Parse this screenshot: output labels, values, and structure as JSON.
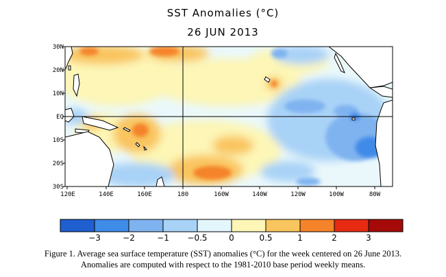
{
  "title": "SST Anomalies (°C)",
  "date": "26 JUN 2013",
  "map": {
    "lat_labels": [
      "30N",
      "20N",
      "10N",
      "EQ",
      "10S",
      "20S",
      "30S"
    ],
    "lon_labels": [
      "120E",
      "140E",
      "160E",
      "180",
      "160W",
      "140W",
      "120W",
      "100W",
      "80W"
    ]
  },
  "colorbar": {
    "colors": [
      "#1f5fd0",
      "#3f8be8",
      "#7fb3f0",
      "#a9d2f7",
      "#e2f6fb",
      "#fdf6b6",
      "#f9c55e",
      "#f5832a",
      "#e62b12",
      "#a50a08"
    ],
    "labels": [
      "−3",
      "−2",
      "−1",
      "−0.5",
      "0",
      "0.5",
      "1",
      "2",
      "3"
    ]
  },
  "caption": {
    "line1": "Figure 1. Average sea surface temperature (SST) anomalies (°C) for the week centered on 26 June 2013.",
    "line2": "Anomalies are computed with respect to the 1981-2010 base period weekly means."
  }
}
